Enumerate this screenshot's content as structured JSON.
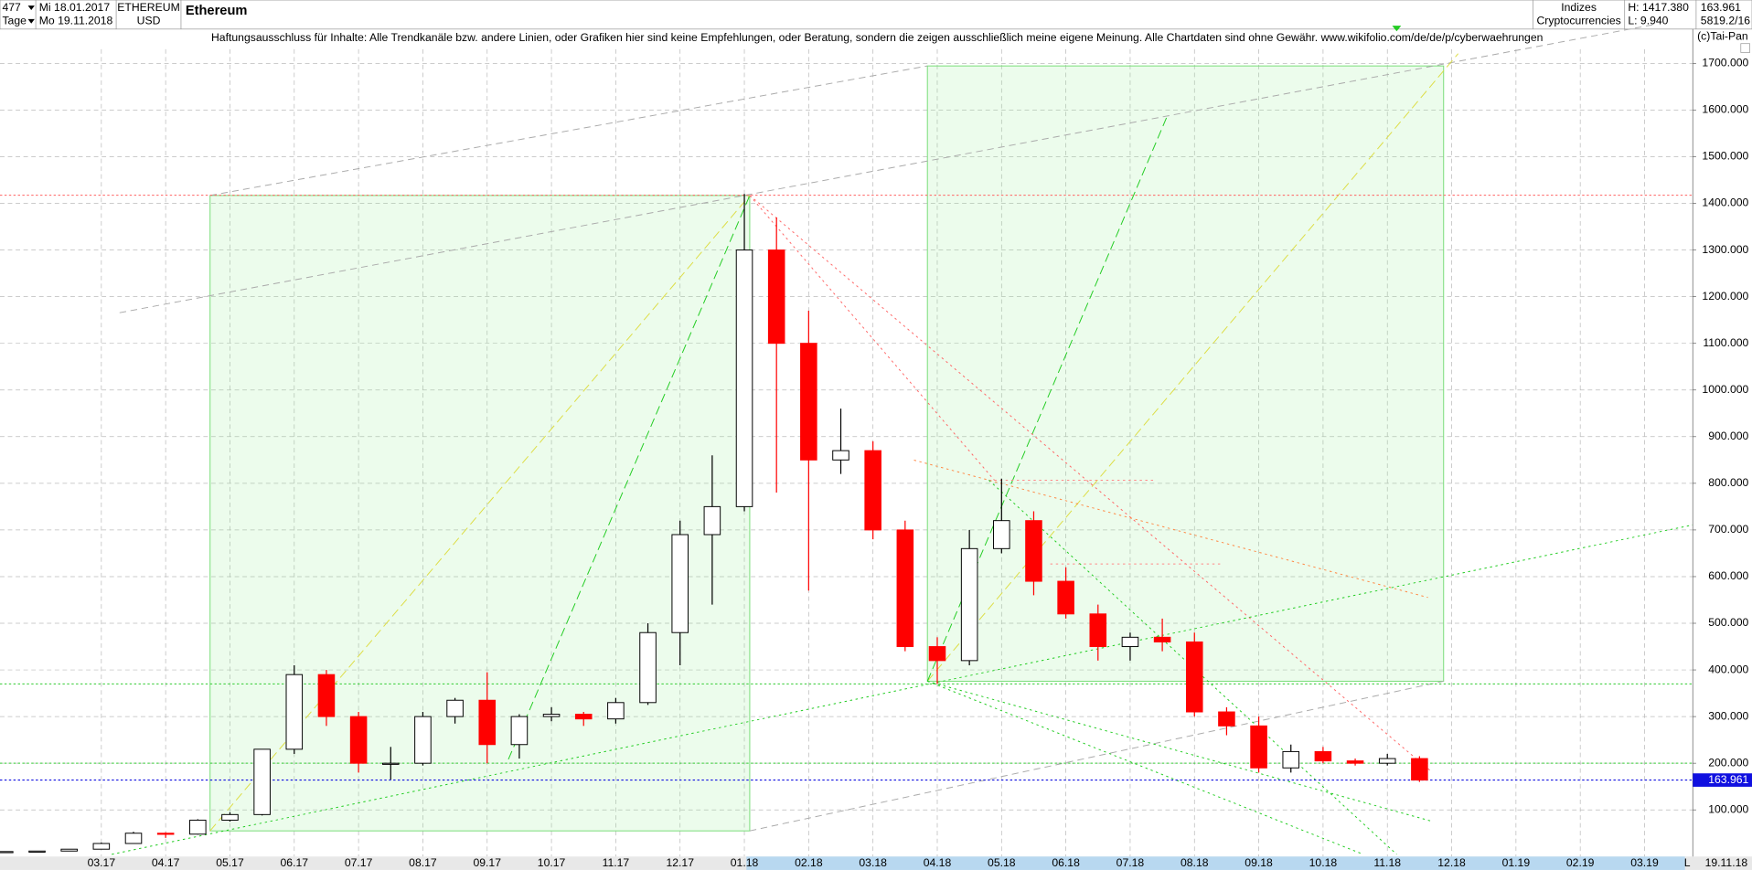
{
  "header": {
    "count": "477",
    "period": "Tage",
    "date_from": "Mi 18.01.2017",
    "date_to": "Mo 19.11.2018",
    "symbol": "ETHEREUM",
    "currency": "USD",
    "name": "Ethereum",
    "group": "Indizes",
    "subgroup": "Cryptocurrencies",
    "high": "H: 1417.380",
    "low": "L: 9.940",
    "last": "163.961",
    "info": "5819.2/16",
    "disclaimer": "Haftungsausschluss für Inhalte: Alle Trendkanäle bzw. andere Linien, oder Grafiken hier sind keine Empfehlungen, oder Beratung, sondern die zeigen ausschließlich meine eigene Meinung. Alle Chartdaten sind ohne Gewähr.  www.wikifolio.com/de/de/p/cyberwaehrungen",
    "copyright": "(c)Tai-Pan",
    "axis_mode": "L",
    "axis_date": "19.11.18"
  },
  "chart_data": {
    "type": "candlestick",
    "up_color": "#000000",
    "down_color": "#ff0000",
    "categories": [
      null,
      null,
      null,
      "03.17",
      null,
      "04.17",
      null,
      "05.17",
      null,
      "06.17",
      null,
      "07.17",
      null,
      "08.17",
      null,
      "09.17",
      null,
      "10.17",
      null,
      "11.17",
      null,
      "12.17",
      null,
      "01.18",
      null,
      "02.18",
      null,
      "03.18",
      null,
      "04.18",
      null,
      "05.18",
      null,
      "06.18",
      null,
      "07.18",
      null,
      "08.18",
      null,
      "09.18",
      null,
      "10.18",
      null,
      "11.18",
      null,
      "12.18",
      null,
      "01.19",
      null,
      "02.19",
      null,
      "03.19",
      null
    ],
    "open": [
      10.5,
      10.7,
      11.8,
      15.8,
      28,
      50,
      48,
      78,
      90,
      230,
      390,
      300,
      200,
      200,
      300,
      335,
      240,
      300,
      305,
      295,
      330,
      480,
      690,
      750,
      1300,
      1100,
      850,
      870,
      700,
      450,
      420,
      660,
      720,
      590,
      520,
      450,
      470,
      460,
      310,
      280,
      190,
      225,
      205,
      200,
      210,
      null,
      null,
      null,
      null,
      null,
      null,
      null,
      null
    ],
    "high": [
      11,
      12,
      16,
      30,
      53,
      52,
      80,
      95,
      230,
      410,
      400,
      310,
      235,
      310,
      340,
      395,
      305,
      320,
      310,
      340,
      500,
      720,
      860,
      1420,
      1370,
      1170,
      960,
      890,
      720,
      470,
      700,
      810,
      740,
      620,
      540,
      480,
      510,
      480,
      320,
      300,
      240,
      235,
      210,
      220,
      215,
      null,
      null,
      null,
      null,
      null,
      null,
      null,
      null
    ],
    "low": [
      10,
      10.5,
      11.5,
      15.5,
      28,
      40,
      47,
      75,
      88,
      220,
      280,
      180,
      165,
      195,
      285,
      200,
      210,
      290,
      280,
      285,
      325,
      410,
      540,
      740,
      780,
      570,
      820,
      680,
      440,
      370,
      410,
      650,
      560,
      510,
      420,
      420,
      440,
      300,
      260,
      180,
      180,
      200,
      195,
      195,
      160,
      null,
      null,
      null,
      null,
      null,
      null,
      null,
      null
    ],
    "close": [
      10.7,
      11.8,
      15.8,
      28,
      50,
      48,
      78,
      90,
      230,
      390,
      300,
      200,
      200,
      300,
      335,
      240,
      300,
      305,
      295,
      330,
      480,
      690,
      750,
      1300,
      1100,
      850,
      870,
      700,
      450,
      420,
      660,
      720,
      590,
      520,
      450,
      470,
      460,
      310,
      280,
      190,
      225,
      205,
      200,
      210,
      163.961,
      null,
      null,
      null,
      null,
      null,
      null,
      null,
      null
    ],
    "ylim": [
      0,
      1740
    ],
    "yticks": [
      {
        "value": 100,
        "label": "100.000"
      },
      {
        "value": 200,
        "label": "200.000"
      },
      {
        "value": 300,
        "label": "300.000"
      },
      {
        "value": 400,
        "label": "400.000"
      },
      {
        "value": 500,
        "label": "500.000"
      },
      {
        "value": 600,
        "label": "600.000"
      },
      {
        "value": 700,
        "label": "700.000"
      },
      {
        "value": 800,
        "label": "800.000"
      },
      {
        "value": 900,
        "label": "900.000"
      },
      {
        "value": 1000,
        "label": "1000.000"
      },
      {
        "value": 1100,
        "label": "1100.000"
      },
      {
        "value": 1200,
        "label": "1200.000"
      },
      {
        "value": 1300,
        "label": "1300.000"
      },
      {
        "value": 1400,
        "label": "1400.000"
      },
      {
        "value": 1500,
        "label": "1500.000"
      },
      {
        "value": 1600,
        "label": "1600.000"
      },
      {
        "value": 1700,
        "label": "1700.000"
      }
    ],
    "grid": true,
    "levels": [
      {
        "value": 1417.38,
        "color": "#ff6060"
      },
      {
        "value": 370,
        "color": "#33cc33"
      },
      {
        "value": 200,
        "color": "#33cc33"
      }
    ],
    "price_marker": {
      "value": 163.961,
      "label": "163.961",
      "color": "#1010e0"
    }
  }
}
